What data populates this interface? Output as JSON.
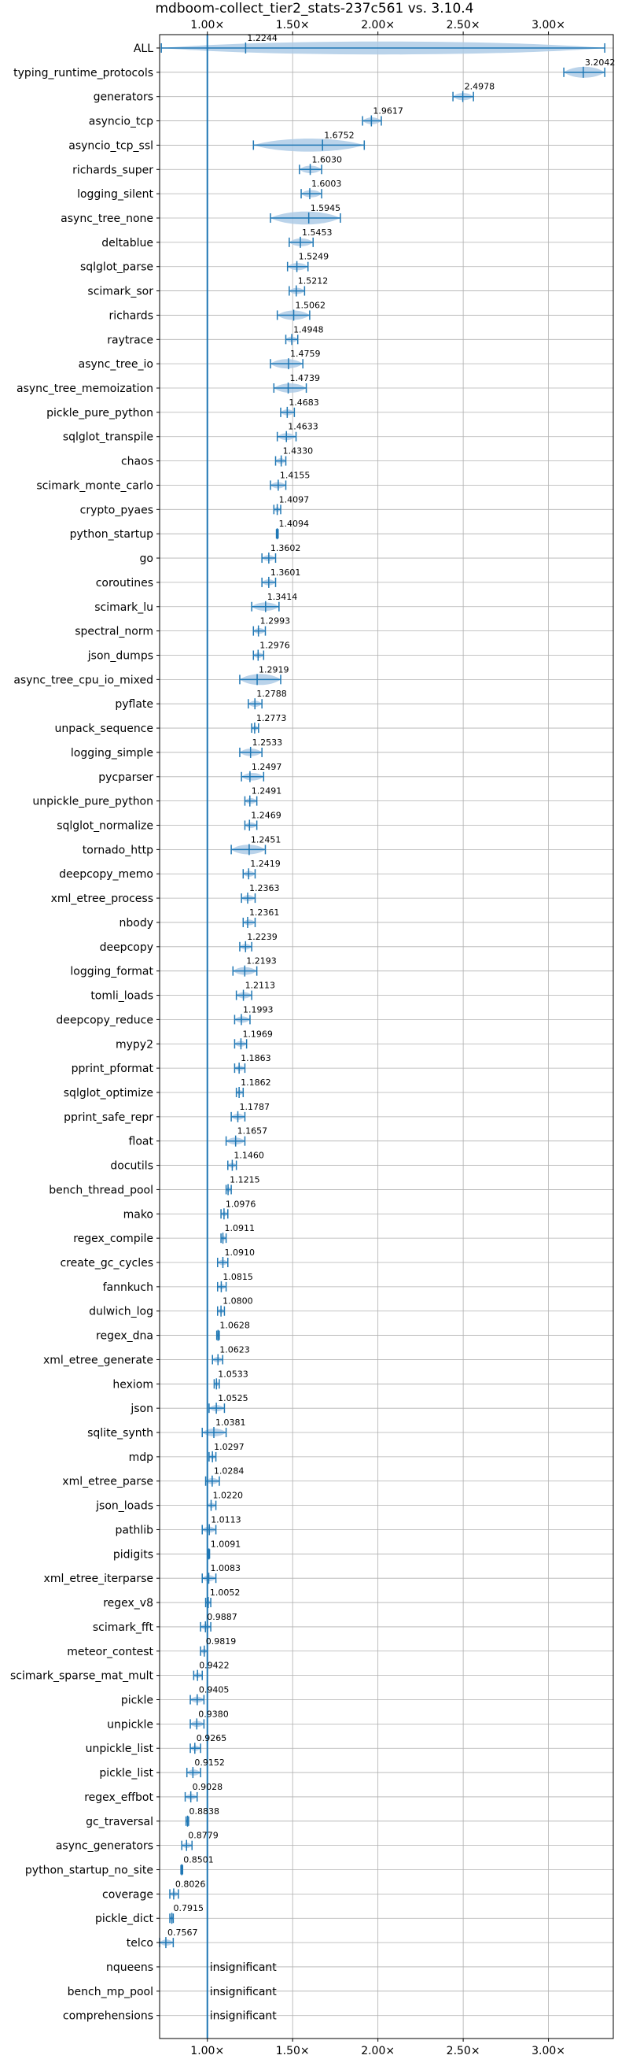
{
  "chart_data": {
    "type": "violin",
    "title": "mdboom-collect_tier2_stats-237c561 vs. 3.10.4",
    "xlim": [
      0.72,
      3.38
    ],
    "x_ticks": [
      {
        "value": 1.0,
        "label": "1.00×"
      },
      {
        "value": 1.5,
        "label": "1.50×"
      },
      {
        "value": 2.0,
        "label": "2.00×"
      },
      {
        "value": 2.5,
        "label": "2.50×"
      },
      {
        "value": 3.0,
        "label": "3.00×"
      }
    ],
    "reference_line": 1.0,
    "grid": true,
    "benchmarks": [
      {
        "name": "ALL",
        "mean": 1.2244,
        "label": "1.2244",
        "min": 0.73,
        "max": 3.33
      },
      {
        "name": "typing_runtime_protocols",
        "mean": 3.2042,
        "label": "3.2042",
        "min": 3.09,
        "max": 3.33
      },
      {
        "name": "generators",
        "mean": 2.4978,
        "label": "2.4978",
        "min": 2.44,
        "max": 2.56
      },
      {
        "name": "asyncio_tcp",
        "mean": 1.9617,
        "label": "1.9617",
        "min": 1.91,
        "max": 2.02
      },
      {
        "name": "asyncio_tcp_ssl",
        "mean": 1.6752,
        "label": "1.6752",
        "min": 1.27,
        "max": 1.92
      },
      {
        "name": "richards_super",
        "mean": 1.603,
        "label": "1.6030",
        "min": 1.54,
        "max": 1.67
      },
      {
        "name": "logging_silent",
        "mean": 1.6003,
        "label": "1.6003",
        "min": 1.55,
        "max": 1.67
      },
      {
        "name": "async_tree_none",
        "mean": 1.5945,
        "label": "1.5945",
        "min": 1.37,
        "max": 1.78
      },
      {
        "name": "deltablue",
        "mean": 1.5453,
        "label": "1.5453",
        "min": 1.48,
        "max": 1.62
      },
      {
        "name": "sqlglot_parse",
        "mean": 1.5249,
        "label": "1.5249",
        "min": 1.47,
        "max": 1.59
      },
      {
        "name": "scimark_sor",
        "mean": 1.5212,
        "label": "1.5212",
        "min": 1.48,
        "max": 1.57
      },
      {
        "name": "richards",
        "mean": 1.5062,
        "label": "1.5062",
        "min": 1.41,
        "max": 1.6
      },
      {
        "name": "raytrace",
        "mean": 1.4948,
        "label": "1.4948",
        "min": 1.46,
        "max": 1.53
      },
      {
        "name": "async_tree_io",
        "mean": 1.4759,
        "label": "1.4759",
        "min": 1.37,
        "max": 1.56
      },
      {
        "name": "async_tree_memoization",
        "mean": 1.4739,
        "label": "1.4739",
        "min": 1.39,
        "max": 1.58
      },
      {
        "name": "pickle_pure_python",
        "mean": 1.4683,
        "label": "1.4683",
        "min": 1.43,
        "max": 1.51
      },
      {
        "name": "sqlglot_transpile",
        "mean": 1.4633,
        "label": "1.4633",
        "min": 1.41,
        "max": 1.52
      },
      {
        "name": "chaos",
        "mean": 1.433,
        "label": "1.4330",
        "min": 1.4,
        "max": 1.46
      },
      {
        "name": "scimark_monte_carlo",
        "mean": 1.4155,
        "label": "1.4155",
        "min": 1.37,
        "max": 1.46
      },
      {
        "name": "crypto_pyaes",
        "mean": 1.4097,
        "label": "1.4097",
        "min": 1.39,
        "max": 1.43
      },
      {
        "name": "python_startup",
        "mean": 1.4094,
        "label": "1.4094",
        "min": 1.405,
        "max": 1.415
      },
      {
        "name": "go",
        "mean": 1.3602,
        "label": "1.3602",
        "min": 1.32,
        "max": 1.4
      },
      {
        "name": "coroutines",
        "mean": 1.3601,
        "label": "1.3601",
        "min": 1.32,
        "max": 1.4
      },
      {
        "name": "scimark_lu",
        "mean": 1.3414,
        "label": "1.3414",
        "min": 1.26,
        "max": 1.42
      },
      {
        "name": "spectral_norm",
        "mean": 1.2993,
        "label": "1.2993",
        "min": 1.27,
        "max": 1.34
      },
      {
        "name": "json_dumps",
        "mean": 1.2976,
        "label": "1.2976",
        "min": 1.27,
        "max": 1.33
      },
      {
        "name": "async_tree_cpu_io_mixed",
        "mean": 1.2919,
        "label": "1.2919",
        "min": 1.19,
        "max": 1.43
      },
      {
        "name": "pyflate",
        "mean": 1.2788,
        "label": "1.2788",
        "min": 1.24,
        "max": 1.32
      },
      {
        "name": "unpack_sequence",
        "mean": 1.2773,
        "label": "1.2773",
        "min": 1.26,
        "max": 1.3
      },
      {
        "name": "logging_simple",
        "mean": 1.2533,
        "label": "1.2533",
        "min": 1.19,
        "max": 1.32
      },
      {
        "name": "pycparser",
        "mean": 1.2497,
        "label": "1.2497",
        "min": 1.2,
        "max": 1.33
      },
      {
        "name": "unpickle_pure_python",
        "mean": 1.2491,
        "label": "1.2491",
        "min": 1.22,
        "max": 1.29
      },
      {
        "name": "sqlglot_normalize",
        "mean": 1.2469,
        "label": "1.2469",
        "min": 1.22,
        "max": 1.29
      },
      {
        "name": "tornado_http",
        "mean": 1.2451,
        "label": "1.2451",
        "min": 1.14,
        "max": 1.34
      },
      {
        "name": "deepcopy_memo",
        "mean": 1.2419,
        "label": "1.2419",
        "min": 1.21,
        "max": 1.28
      },
      {
        "name": "xml_etree_process",
        "mean": 1.2363,
        "label": "1.2363",
        "min": 1.2,
        "max": 1.28
      },
      {
        "name": "nbody",
        "mean": 1.2361,
        "label": "1.2361",
        "min": 1.21,
        "max": 1.28
      },
      {
        "name": "deepcopy",
        "mean": 1.2239,
        "label": "1.2239",
        "min": 1.19,
        "max": 1.26
      },
      {
        "name": "logging_format",
        "mean": 1.2193,
        "label": "1.2193",
        "min": 1.15,
        "max": 1.29
      },
      {
        "name": "tomli_loads",
        "mean": 1.2113,
        "label": "1.2113",
        "min": 1.17,
        "max": 1.26
      },
      {
        "name": "deepcopy_reduce",
        "mean": 1.1993,
        "label": "1.1993",
        "min": 1.16,
        "max": 1.25
      },
      {
        "name": "mypy2",
        "mean": 1.1969,
        "label": "1.1969",
        "min": 1.16,
        "max": 1.23
      },
      {
        "name": "pprint_pformat",
        "mean": 1.1863,
        "label": "1.1863",
        "min": 1.16,
        "max": 1.22
      },
      {
        "name": "sqlglot_optimize",
        "mean": 1.1862,
        "label": "1.1862",
        "min": 1.17,
        "max": 1.21
      },
      {
        "name": "pprint_safe_repr",
        "mean": 1.1787,
        "label": "1.1787",
        "min": 1.14,
        "max": 1.22
      },
      {
        "name": "float",
        "mean": 1.1657,
        "label": "1.1657",
        "min": 1.11,
        "max": 1.22
      },
      {
        "name": "docutils",
        "mean": 1.146,
        "label": "1.1460",
        "min": 1.12,
        "max": 1.17
      },
      {
        "name": "bench_thread_pool",
        "mean": 1.1215,
        "label": "1.1215",
        "min": 1.11,
        "max": 1.14
      },
      {
        "name": "mako",
        "mean": 1.0976,
        "label": "1.0976",
        "min": 1.08,
        "max": 1.12
      },
      {
        "name": "regex_compile",
        "mean": 1.0911,
        "label": "1.0911",
        "min": 1.08,
        "max": 1.11
      },
      {
        "name": "create_gc_cycles",
        "mean": 1.091,
        "label": "1.0910",
        "min": 1.06,
        "max": 1.12
      },
      {
        "name": "fannkuch",
        "mean": 1.0815,
        "label": "1.0815",
        "min": 1.06,
        "max": 1.11
      },
      {
        "name": "dulwich_log",
        "mean": 1.08,
        "label": "1.0800",
        "min": 1.06,
        "max": 1.1
      },
      {
        "name": "regex_dna",
        "mean": 1.0628,
        "label": "1.0628",
        "min": 1.055,
        "max": 1.07
      },
      {
        "name": "xml_etree_generate",
        "mean": 1.0623,
        "label": "1.0623",
        "min": 1.03,
        "max": 1.09
      },
      {
        "name": "hexiom",
        "mean": 1.0533,
        "label": "1.0533",
        "min": 1.04,
        "max": 1.07
      },
      {
        "name": "json",
        "mean": 1.0525,
        "label": "1.0525",
        "min": 1.01,
        "max": 1.1
      },
      {
        "name": "sqlite_synth",
        "mean": 1.0381,
        "label": "1.0381",
        "min": 0.97,
        "max": 1.11
      },
      {
        "name": "mdp",
        "mean": 1.0297,
        "label": "1.0297",
        "min": 1.01,
        "max": 1.05
      },
      {
        "name": "xml_etree_parse",
        "mean": 1.0284,
        "label": "1.0284",
        "min": 0.99,
        "max": 1.07
      },
      {
        "name": "json_loads",
        "mean": 1.022,
        "label": "1.0220",
        "min": 1.0,
        "max": 1.05
      },
      {
        "name": "pathlib",
        "mean": 1.0113,
        "label": "1.0113",
        "min": 0.97,
        "max": 1.05
      },
      {
        "name": "pidigits",
        "mean": 1.0091,
        "label": "1.0091",
        "min": 1.005,
        "max": 1.013
      },
      {
        "name": "xml_etree_iterparse",
        "mean": 1.0083,
        "label": "1.0083",
        "min": 0.97,
        "max": 1.05
      },
      {
        "name": "regex_v8",
        "mean": 1.0052,
        "label": "1.0052",
        "min": 0.99,
        "max": 1.02
      },
      {
        "name": "scimark_fft",
        "mean": 0.9887,
        "label": "0.9887",
        "min": 0.96,
        "max": 1.02
      },
      {
        "name": "meteor_contest",
        "mean": 0.9819,
        "label": "0.9819",
        "min": 0.96,
        "max": 1.0
      },
      {
        "name": "scimark_sparse_mat_mult",
        "mean": 0.9422,
        "label": "0.9422",
        "min": 0.92,
        "max": 0.97
      },
      {
        "name": "pickle",
        "mean": 0.9405,
        "label": "0.9405",
        "min": 0.9,
        "max": 0.98
      },
      {
        "name": "unpickle",
        "mean": 0.938,
        "label": "0.9380",
        "min": 0.9,
        "max": 0.98
      },
      {
        "name": "unpickle_list",
        "mean": 0.9265,
        "label": "0.9265",
        "min": 0.9,
        "max": 0.96
      },
      {
        "name": "pickle_list",
        "mean": 0.9152,
        "label": "0.9152",
        "min": 0.88,
        "max": 0.96
      },
      {
        "name": "regex_effbot",
        "mean": 0.9028,
        "label": "0.9028",
        "min": 0.87,
        "max": 0.94
      },
      {
        "name": "gc_traversal",
        "mean": 0.8838,
        "label": "0.8838",
        "min": 0.875,
        "max": 0.89
      },
      {
        "name": "async_generators",
        "mean": 0.8779,
        "label": "0.8779",
        "min": 0.85,
        "max": 0.91
      },
      {
        "name": "python_startup_no_site",
        "mean": 0.8501,
        "label": "0.8501",
        "min": 0.845,
        "max": 0.855
      },
      {
        "name": "coverage",
        "mean": 0.8026,
        "label": "0.8026",
        "min": 0.78,
        "max": 0.83
      },
      {
        "name": "pickle_dict",
        "mean": 0.7915,
        "label": "0.7915",
        "min": 0.78,
        "max": 0.8
      },
      {
        "name": "telco",
        "mean": 0.7567,
        "label": "0.7567",
        "min": 0.72,
        "max": 0.8
      },
      {
        "name": "nqueens",
        "label": "insignificant"
      },
      {
        "name": "bench_mp_pool",
        "label": "insignificant"
      },
      {
        "name": "comprehensions",
        "label": "insignificant"
      }
    ]
  },
  "colors": {
    "violin": "#aecbe6",
    "line": "#1f77b4",
    "grid": "#b0b0b0",
    "axis": "#000000"
  }
}
